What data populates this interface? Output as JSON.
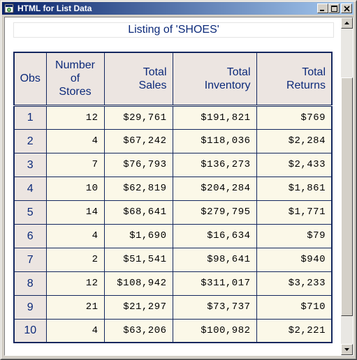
{
  "window": {
    "title": "HTML for List Data"
  },
  "listing": {
    "caption": "Listing of 'SHOES'",
    "headers": {
      "obs": "Obs",
      "stores_line1": "Number",
      "stores_line2": "of",
      "stores_line3": "Stores",
      "sales_line1": "Total",
      "sales_line2": "Sales",
      "inventory_line1": "Total",
      "inventory_line2": "Inventory",
      "returns_line1": "Total",
      "returns_line2": "Returns"
    },
    "rows": [
      {
        "obs": "1",
        "stores": "12",
        "sales": "$29,761",
        "inventory": "$191,821",
        "returns": "$769"
      },
      {
        "obs": "2",
        "stores": "4",
        "sales": "$67,242",
        "inventory": "$118,036",
        "returns": "$2,284"
      },
      {
        "obs": "3",
        "stores": "7",
        "sales": "$76,793",
        "inventory": "$136,273",
        "returns": "$2,433"
      },
      {
        "obs": "4",
        "stores": "10",
        "sales": "$62,819",
        "inventory": "$204,284",
        "returns": "$1,861"
      },
      {
        "obs": "5",
        "stores": "14",
        "sales": "$68,641",
        "inventory": "$279,795",
        "returns": "$1,771"
      },
      {
        "obs": "6",
        "stores": "4",
        "sales": "$1,690",
        "inventory": "$16,634",
        "returns": "$79"
      },
      {
        "obs": "7",
        "stores": "2",
        "sales": "$51,541",
        "inventory": "$98,641",
        "returns": "$940"
      },
      {
        "obs": "8",
        "stores": "12",
        "sales": "$108,942",
        "inventory": "$311,017",
        "returns": "$3,233"
      },
      {
        "obs": "9",
        "stores": "21",
        "sales": "$21,297",
        "inventory": "$73,737",
        "returns": "$710"
      },
      {
        "obs": "10",
        "stores": "4",
        "sales": "$63,206",
        "inventory": "$100,982",
        "returns": "$2,221"
      }
    ]
  },
  "icons": {
    "app": "browser-document-icon",
    "minimize": "minimize-icon",
    "maximize": "maximize-icon",
    "close": "close-icon",
    "scroll_up": "arrow-up-icon",
    "scroll_down": "arrow-down-icon"
  },
  "colors": {
    "header_text": "#0c2a7a",
    "header_bg": "#ece5e1",
    "cell_bg": "#fbf8e8",
    "grid": "#13275f",
    "titlebar_start": "#0a246a",
    "titlebar_end": "#a6caf0"
  }
}
